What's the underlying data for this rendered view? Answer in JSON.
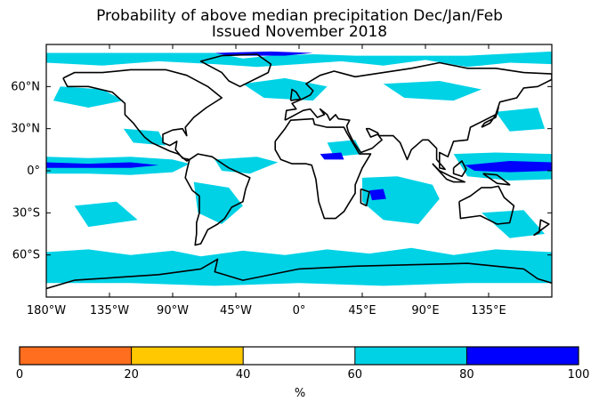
{
  "title": {
    "line1": "Probability of above median precipitation Dec/Jan/Feb",
    "line2": "Issued November 2018"
  },
  "map": {
    "projection": "cylindrical",
    "lon_range": [
      -180,
      180
    ],
    "lat_range": [
      -90,
      90
    ],
    "x_ticks": [
      {
        "value": -180,
        "label": "180°W"
      },
      {
        "value": -135,
        "label": "135°W"
      },
      {
        "value": -90,
        "label": "90°W"
      },
      {
        "value": -45,
        "label": "45°W"
      },
      {
        "value": 0,
        "label": "0°"
      },
      {
        "value": 45,
        "label": "45°E"
      },
      {
        "value": 90,
        "label": "90°E"
      },
      {
        "value": 135,
        "label": "135°E"
      }
    ],
    "y_ticks": [
      {
        "value": 60,
        "label": "60°N"
      },
      {
        "value": 30,
        "label": "30°N"
      },
      {
        "value": 0,
        "label": "0°"
      },
      {
        "value": -30,
        "label": "30°S"
      },
      {
        "value": -60,
        "label": "60°S"
      }
    ],
    "colors": {
      "land_outline": "#000000",
      "prob_60_80": "#00d2e6",
      "prob_80_100": "#0000ff",
      "background": "#ffffff"
    }
  },
  "colorbar": {
    "bins": [
      {
        "from": 0,
        "to": 20,
        "color": "#ff6e1e"
      },
      {
        "from": 20,
        "to": 40,
        "color": "#ffc800"
      },
      {
        "from": 40,
        "to": 60,
        "color": "#ffffff"
      },
      {
        "from": 60,
        "to": 80,
        "color": "#00d2e6"
      },
      {
        "from": 80,
        "to": 100,
        "color": "#0000ff"
      }
    ],
    "tick_labels": [
      "0",
      "20",
      "40",
      "60",
      "80",
      "100"
    ],
    "unit_label": "%"
  }
}
